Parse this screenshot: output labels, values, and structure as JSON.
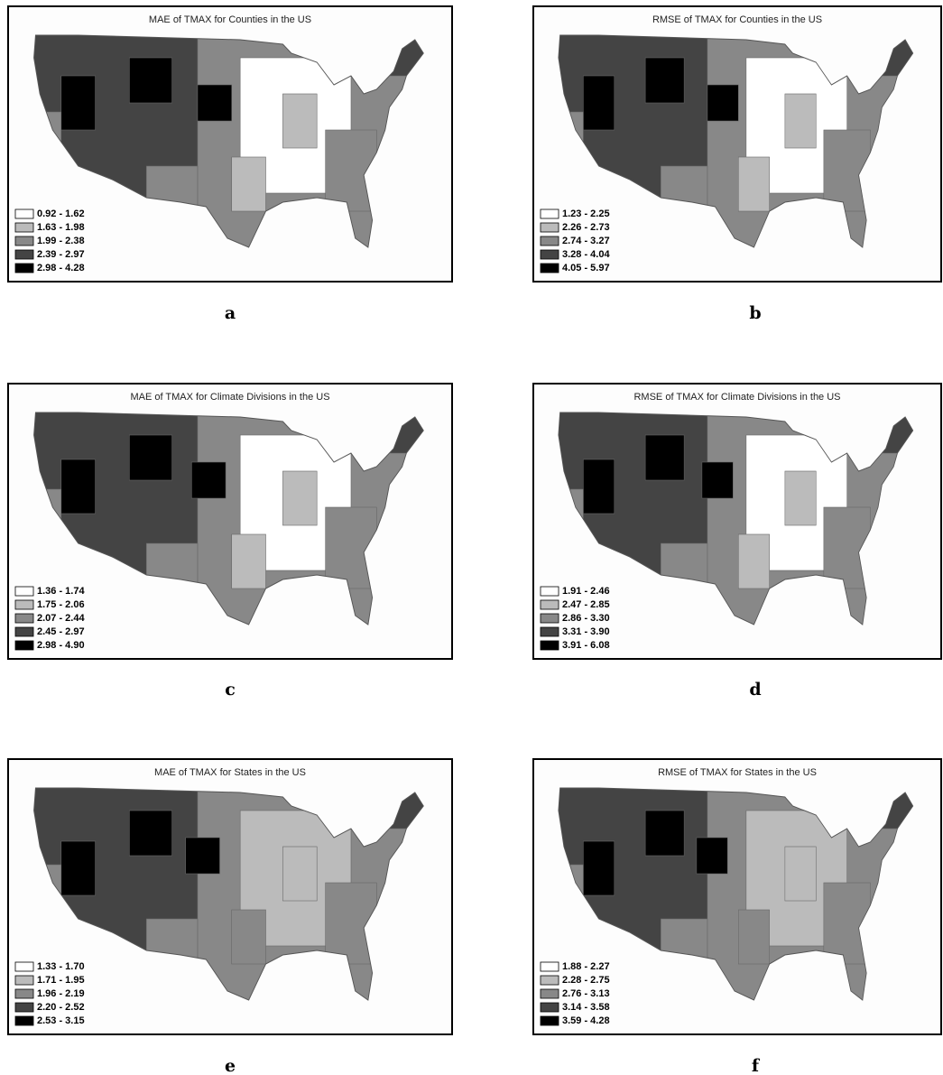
{
  "legend_colors": [
    "#ffffff",
    "#bbbbbb",
    "#888888",
    "#444444",
    "#000000"
  ],
  "panels": [
    {
      "title": "MAE of TMAX for Counties in the US",
      "letter": "a",
      "legend": [
        "0.92 - 1.62",
        "1.63 - 1.98",
        "1.99 - 2.38",
        "2.39 - 2.97",
        "2.98 - 4.28"
      ]
    },
    {
      "title": "RMSE of TMAX for Counties in the US",
      "letter": "b",
      "legend": [
        "1.23 - 2.25",
        "2.26 - 2.73",
        "2.74 - 3.27",
        "3.28 - 4.04",
        "4.05 - 5.97"
      ]
    },
    {
      "title": "MAE of TMAX for Climate Divisions in the US",
      "letter": "c",
      "legend": [
        "1.36 - 1.74",
        "1.75 - 2.06",
        "2.07 - 2.44",
        "2.45 - 2.97",
        "2.98 - 4.90"
      ]
    },
    {
      "title": "RMSE of TMAX for Climate Divisions in the US",
      "letter": "d",
      "legend": [
        "1.91 - 2.46",
        "2.47 - 2.85",
        "2.86 - 3.30",
        "3.31 - 3.90",
        "3.91 - 6.08"
      ]
    },
    {
      "title": "MAE of TMAX for States in the US",
      "letter": "e",
      "legend": [
        "1.33 - 1.70",
        "1.71 - 1.95",
        "1.96 - 2.19",
        "2.20 - 2.52",
        "2.53 - 3.15"
      ]
    },
    {
      "title": "RMSE of TMAX for States in the US",
      "letter": "f",
      "legend": [
        "1.88 - 2.27",
        "2.28 - 2.75",
        "2.76 - 3.13",
        "3.14 - 3.58",
        "3.59 - 4.28"
      ]
    }
  ]
}
